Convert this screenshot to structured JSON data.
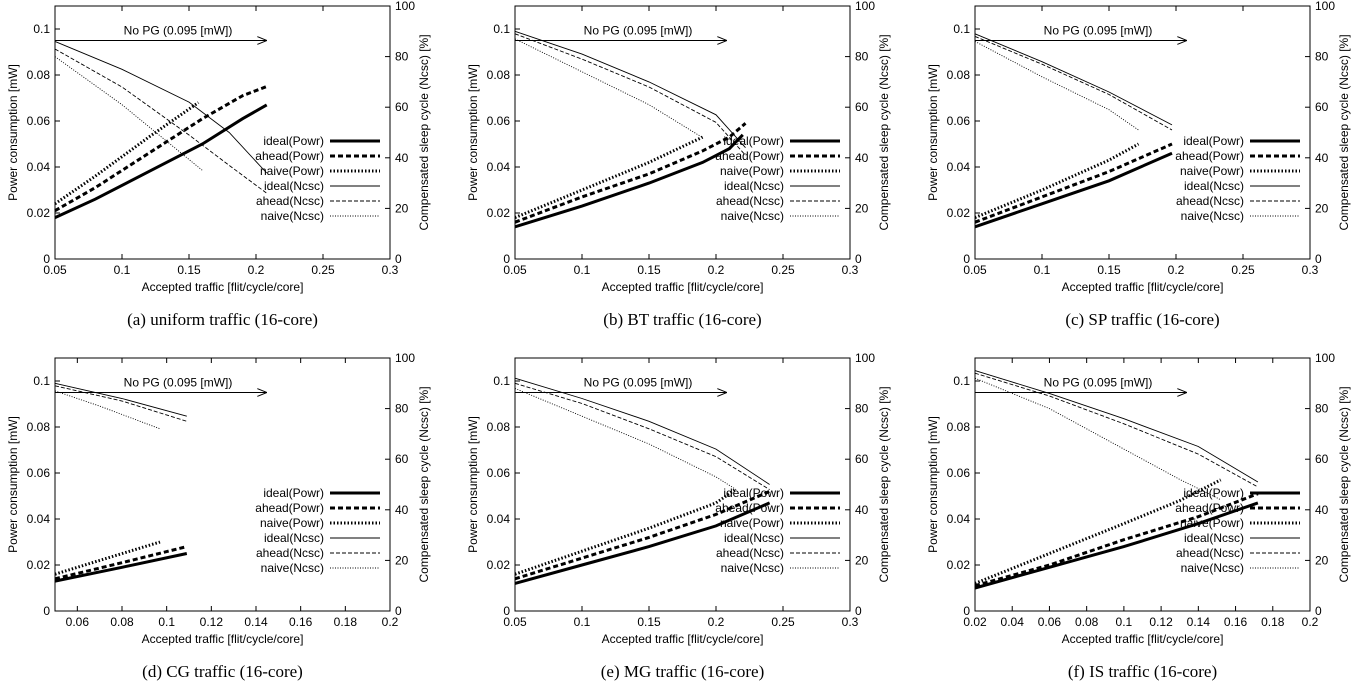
{
  "chart_data": [
    {
      "type": "line",
      "caption": "(a)  uniform traffic (16-core)",
      "xlabel": "Accepted traffic [flit/cycle/core]",
      "ylabel": "Power consumption [mW]",
      "y2label": "Compensated sleep cycle (Ncsc) [%]",
      "xlim": [
        0.05,
        0.3
      ],
      "xticks": [
        0.05,
        0.1,
        0.15,
        0.2,
        0.25,
        0.3
      ],
      "xtick_labels": [
        "0.05",
        "0.1",
        "0.15",
        "0.2",
        "0.25",
        "0.3"
      ],
      "ylim": [
        0,
        0.11
      ],
      "yticks": [
        0,
        0.02,
        0.04,
        0.06,
        0.08,
        0.1
      ],
      "ytick_labels": [
        "0",
        "0.02",
        "0.04",
        "0.06",
        "0.08",
        "0.1"
      ],
      "y2lim": [
        0,
        100
      ],
      "y2ticks": [
        0,
        20,
        40,
        60,
        80,
        100
      ],
      "y2tick_labels": [
        "0",
        "20",
        "40",
        "60",
        "80",
        "100"
      ],
      "annotation": "No PG (0.095 [mW])",
      "nopg_value": 0.095,
      "series": [
        {
          "name": "ideal(Powr)",
          "axis": "y",
          "style": "thick-solid",
          "x": [
            0.05,
            0.08,
            0.12,
            0.16,
            0.19,
            0.208
          ],
          "y": [
            0.018,
            0.026,
            0.038,
            0.05,
            0.061,
            0.067
          ]
        },
        {
          "name": "ahead(Powr)",
          "axis": "y",
          "style": "thick-dash",
          "x": [
            0.05,
            0.08,
            0.12,
            0.16,
            0.19,
            0.208
          ],
          "y": [
            0.021,
            0.031,
            0.046,
            0.061,
            0.071,
            0.075
          ]
        },
        {
          "name": "naive(Powr)",
          "axis": "y",
          "style": "thick-dot",
          "x": [
            0.05,
            0.08,
            0.12,
            0.157
          ],
          "y": [
            0.024,
            0.036,
            0.053,
            0.068
          ]
        },
        {
          "name": "ideal(Ncsc)",
          "axis": "y2",
          "style": "thin-solid",
          "x": [
            0.05,
            0.1,
            0.15,
            0.18,
            0.208
          ],
          "y": [
            86,
            75,
            62,
            50,
            34
          ]
        },
        {
          "name": "ahead(Ncsc)",
          "axis": "y2",
          "style": "thin-dash",
          "x": [
            0.05,
            0.1,
            0.15,
            0.18,
            0.208
          ],
          "y": [
            83,
            68,
            49,
            37,
            26
          ]
        },
        {
          "name": "naive(Ncsc)",
          "axis": "y2",
          "style": "thin-dot",
          "x": [
            0.05,
            0.1,
            0.13,
            0.16
          ],
          "y": [
            80,
            61,
            48,
            35
          ]
        }
      ]
    },
    {
      "type": "line",
      "caption": "(b)  BT traffic (16-core)",
      "xlabel": "Accepted traffic [flit/cycle/core]",
      "ylabel": "Power consumption [mW]",
      "y2label": "Compensated sleep cycle (Ncsc) [%]",
      "xlim": [
        0.05,
        0.3
      ],
      "xticks": [
        0.05,
        0.1,
        0.15,
        0.2,
        0.25,
        0.3
      ],
      "xtick_labels": [
        "0.05",
        "0.1",
        "0.15",
        "0.2",
        "0.25",
        "0.3"
      ],
      "ylim": [
        0,
        0.11
      ],
      "yticks": [
        0,
        0.02,
        0.04,
        0.06,
        0.08,
        0.1
      ],
      "ytick_labels": [
        "0",
        "0.02",
        "0.04",
        "0.06",
        "0.08",
        "0.1"
      ],
      "y2lim": [
        0,
        100
      ],
      "y2ticks": [
        0,
        20,
        40,
        60,
        80,
        100
      ],
      "y2tick_labels": [
        "0",
        "20",
        "40",
        "60",
        "80",
        "100"
      ],
      "annotation": "No PG (0.095 [mW])",
      "nopg_value": 0.095,
      "series": [
        {
          "name": "ideal(Powr)",
          "axis": "y",
          "style": "thick-solid",
          "x": [
            0.05,
            0.1,
            0.15,
            0.19,
            0.21,
            0.22
          ],
          "y": [
            0.014,
            0.023,
            0.033,
            0.042,
            0.048,
            0.054
          ]
        },
        {
          "name": "ahead(Powr)",
          "axis": "y",
          "style": "thick-dash",
          "x": [
            0.05,
            0.1,
            0.15,
            0.19,
            0.21,
            0.222
          ],
          "y": [
            0.016,
            0.027,
            0.037,
            0.047,
            0.053,
            0.059
          ]
        },
        {
          "name": "naive(Powr)",
          "axis": "y",
          "style": "thick-dot",
          "x": [
            0.05,
            0.1,
            0.15,
            0.19
          ],
          "y": [
            0.018,
            0.03,
            0.042,
            0.053
          ]
        },
        {
          "name": "ideal(Ncsc)",
          "axis": "y2",
          "style": "thin-solid",
          "x": [
            0.05,
            0.1,
            0.15,
            0.2,
            0.222
          ],
          "y": [
            90,
            81,
            70,
            57,
            44
          ]
        },
        {
          "name": "ahead(Ncsc)",
          "axis": "y2",
          "style": "thin-dash",
          "x": [
            0.05,
            0.1,
            0.15,
            0.2,
            0.222
          ],
          "y": [
            89,
            79,
            68,
            54,
            41
          ]
        },
        {
          "name": "naive(Ncsc)",
          "axis": "y2",
          "style": "thin-dot",
          "x": [
            0.05,
            0.1,
            0.15,
            0.19
          ],
          "y": [
            87,
            74,
            61,
            48
          ]
        }
      ]
    },
    {
      "type": "line",
      "caption": "(c)  SP traffic (16-core)",
      "xlabel": "Accepted traffic [flit/cycle/core]",
      "ylabel": "Power consumption [mW]",
      "y2label": "Compensated sleep cycle (Ncsc) [%]",
      "xlim": [
        0.05,
        0.3
      ],
      "xticks": [
        0.05,
        0.1,
        0.15,
        0.2,
        0.25,
        0.3
      ],
      "xtick_labels": [
        "0.05",
        "0.1",
        "0.15",
        "0.2",
        "0.25",
        "0.3"
      ],
      "ylim": [
        0,
        0.11
      ],
      "yticks": [
        0,
        0.02,
        0.04,
        0.06,
        0.08,
        0.1
      ],
      "ytick_labels": [
        "0",
        "0.02",
        "0.04",
        "0.06",
        "0.08",
        "0.1"
      ],
      "y2lim": [
        0,
        100
      ],
      "y2ticks": [
        0,
        20,
        40,
        60,
        80,
        100
      ],
      "y2tick_labels": [
        "0",
        "20",
        "40",
        "60",
        "80",
        "100"
      ],
      "annotation": "No PG (0.095 [mW])",
      "nopg_value": 0.095,
      "series": [
        {
          "name": "ideal(Powr)",
          "axis": "y",
          "style": "thick-solid",
          "x": [
            0.05,
            0.1,
            0.15,
            0.197
          ],
          "y": [
            0.014,
            0.024,
            0.034,
            0.046
          ]
        },
        {
          "name": "ahead(Powr)",
          "axis": "y",
          "style": "thick-dash",
          "x": [
            0.05,
            0.1,
            0.15,
            0.197
          ],
          "y": [
            0.016,
            0.027,
            0.038,
            0.05
          ]
        },
        {
          "name": "naive(Powr)",
          "axis": "y",
          "style": "thick-dot",
          "x": [
            0.05,
            0.1,
            0.15,
            0.172
          ],
          "y": [
            0.018,
            0.03,
            0.043,
            0.05
          ]
        },
        {
          "name": "ideal(Ncsc)",
          "axis": "y2",
          "style": "thin-solid",
          "x": [
            0.05,
            0.1,
            0.15,
            0.197
          ],
          "y": [
            89,
            78,
            66,
            53
          ]
        },
        {
          "name": "ahead(Ncsc)",
          "axis": "y2",
          "style": "thin-dash",
          "x": [
            0.05,
            0.1,
            0.15,
            0.197
          ],
          "y": [
            88,
            77,
            65,
            51
          ]
        },
        {
          "name": "naive(Ncsc)",
          "axis": "y2",
          "style": "thin-dot",
          "x": [
            0.05,
            0.1,
            0.15,
            0.172
          ],
          "y": [
            86,
            72,
            59,
            51
          ]
        }
      ]
    },
    {
      "type": "line",
      "caption": "(d)  CG traffic (16-core)",
      "xlabel": "Accepted traffic [flit/cycle/core]",
      "ylabel": "Power consumption [mW]",
      "y2label": "Compensated sleep cycle (Ncsc) [%]",
      "xlim": [
        0.05,
        0.2
      ],
      "xticks": [
        0.06,
        0.08,
        0.1,
        0.12,
        0.14,
        0.16,
        0.18,
        0.2
      ],
      "xtick_labels": [
        "0.06",
        "0.08",
        "0.1",
        "0.12",
        "0.14",
        "0.16",
        "0.18",
        "0.2"
      ],
      "ylim": [
        0,
        0.11
      ],
      "yticks": [
        0,
        0.02,
        0.04,
        0.06,
        0.08,
        0.1
      ],
      "ytick_labels": [
        "0",
        "0.02",
        "0.04",
        "0.06",
        "0.08",
        "0.1"
      ],
      "y2lim": [
        0,
        100
      ],
      "y2ticks": [
        0,
        20,
        40,
        60,
        80,
        100
      ],
      "y2tick_labels": [
        "0",
        "20",
        "40",
        "60",
        "80",
        "100"
      ],
      "annotation": "No PG (0.095 [mW])",
      "nopg_value": 0.095,
      "series": [
        {
          "name": "ideal(Powr)",
          "axis": "y",
          "style": "thick-solid",
          "x": [
            0.05,
            0.08,
            0.109
          ],
          "y": [
            0.013,
            0.019,
            0.025
          ]
        },
        {
          "name": "ahead(Powr)",
          "axis": "y",
          "style": "thick-dash",
          "x": [
            0.05,
            0.08,
            0.109
          ],
          "y": [
            0.014,
            0.021,
            0.028
          ]
        },
        {
          "name": "naive(Powr)",
          "axis": "y",
          "style": "thick-dot",
          "x": [
            0.05,
            0.07,
            0.097
          ],
          "y": [
            0.016,
            0.022,
            0.03
          ]
        },
        {
          "name": "ideal(Ncsc)",
          "axis": "y2",
          "style": "thin-solid",
          "x": [
            0.05,
            0.08,
            0.109
          ],
          "y": [
            90,
            84,
            77
          ]
        },
        {
          "name": "ahead(Ncsc)",
          "axis": "y2",
          "style": "thin-dash",
          "x": [
            0.05,
            0.08,
            0.109
          ],
          "y": [
            89,
            83,
            75
          ]
        },
        {
          "name": "naive(Ncsc)",
          "axis": "y2",
          "style": "thin-dot",
          "x": [
            0.05,
            0.07,
            0.097
          ],
          "y": [
            87,
            81,
            72
          ]
        }
      ]
    },
    {
      "type": "line",
      "caption": "(e)  MG traffic (16-core)",
      "xlabel": "Accepted traffic [flit/cycle/core]",
      "ylabel": "Power consumption [mW]",
      "y2label": "Compensated sleep cycle (Ncsc) [%]",
      "xlim": [
        0.05,
        0.3
      ],
      "xticks": [
        0.05,
        0.1,
        0.15,
        0.2,
        0.25,
        0.3
      ],
      "xtick_labels": [
        "0.05",
        "0.1",
        "0.15",
        "0.2",
        "0.25",
        "0.3"
      ],
      "ylim": [
        0,
        0.11
      ],
      "yticks": [
        0,
        0.02,
        0.04,
        0.06,
        0.08,
        0.1
      ],
      "ytick_labels": [
        "0",
        "0.02",
        "0.04",
        "0.06",
        "0.08",
        "0.1"
      ],
      "y2lim": [
        0,
        100
      ],
      "y2ticks": [
        0,
        20,
        40,
        60,
        80,
        100
      ],
      "y2tick_labels": [
        "0",
        "20",
        "40",
        "60",
        "80",
        "100"
      ],
      "annotation": "No PG (0.095 [mW])",
      "nopg_value": 0.095,
      "series": [
        {
          "name": "ideal(Powr)",
          "axis": "y",
          "style": "thick-solid",
          "x": [
            0.05,
            0.1,
            0.15,
            0.2,
            0.24
          ],
          "y": [
            0.012,
            0.02,
            0.028,
            0.037,
            0.047
          ]
        },
        {
          "name": "ahead(Powr)",
          "axis": "y",
          "style": "thick-dash",
          "x": [
            0.05,
            0.1,
            0.15,
            0.2,
            0.24
          ],
          "y": [
            0.014,
            0.023,
            0.032,
            0.042,
            0.052
          ]
        },
        {
          "name": "naive(Powr)",
          "axis": "y",
          "style": "thick-dot",
          "x": [
            0.05,
            0.1,
            0.15,
            0.2,
            0.215
          ],
          "y": [
            0.016,
            0.026,
            0.036,
            0.047,
            0.053
          ]
        },
        {
          "name": "ideal(Ncsc)",
          "axis": "y2",
          "style": "thin-solid",
          "x": [
            0.05,
            0.1,
            0.15,
            0.2,
            0.24
          ],
          "y": [
            92,
            84,
            75,
            64,
            50
          ]
        },
        {
          "name": "ahead(Ncsc)",
          "axis": "y2",
          "style": "thin-dash",
          "x": [
            0.05,
            0.1,
            0.15,
            0.2,
            0.24
          ],
          "y": [
            90,
            82,
            72,
            61,
            48
          ]
        },
        {
          "name": "naive(Ncsc)",
          "axis": "y2",
          "style": "thin-dot",
          "x": [
            0.05,
            0.1,
            0.15,
            0.2,
            0.215
          ],
          "y": [
            88,
            77,
            66,
            53,
            48
          ]
        }
      ]
    },
    {
      "type": "line",
      "caption": "(f)  IS traffic (16-core)",
      "xlabel": "Accepted traffic [flit/cycle/core]",
      "ylabel": "Power consumption [mW]",
      "y2label": "Compensated sleep cycle (Ncsc) [%]",
      "xlim": [
        0.02,
        0.2
      ],
      "xticks": [
        0.02,
        0.04,
        0.06,
        0.08,
        0.1,
        0.12,
        0.14,
        0.16,
        0.18,
        0.2
      ],
      "xtick_labels": [
        "0.02",
        "0.04",
        "0.06",
        "0.08",
        "0.1",
        "0.12",
        "0.14",
        "0.16",
        "0.18",
        "0.2"
      ],
      "ylim": [
        0,
        0.11
      ],
      "yticks": [
        0,
        0.02,
        0.04,
        0.06,
        0.08,
        0.1
      ],
      "ytick_labels": [
        "0",
        "0.02",
        "0.04",
        "0.06",
        "0.08",
        "0.1"
      ],
      "y2lim": [
        0,
        100
      ],
      "y2ticks": [
        0,
        20,
        40,
        60,
        80,
        100
      ],
      "y2tick_labels": [
        "0",
        "20",
        "40",
        "60",
        "80",
        "100"
      ],
      "annotation": "No PG (0.095 [mW])",
      "nopg_value": 0.095,
      "series": [
        {
          "name": "ideal(Powr)",
          "axis": "y",
          "style": "thick-solid",
          "x": [
            0.02,
            0.06,
            0.1,
            0.14,
            0.172
          ],
          "y": [
            0.01,
            0.019,
            0.028,
            0.038,
            0.047
          ]
        },
        {
          "name": "ahead(Powr)",
          "axis": "y",
          "style": "thick-dash",
          "x": [
            0.02,
            0.06,
            0.1,
            0.14,
            0.172
          ],
          "y": [
            0.011,
            0.02,
            0.031,
            0.041,
            0.051
          ]
        },
        {
          "name": "naive(Powr)",
          "axis": "y",
          "style": "thick-dot",
          "x": [
            0.02,
            0.06,
            0.1,
            0.13,
            0.152
          ],
          "y": [
            0.012,
            0.025,
            0.038,
            0.048,
            0.057
          ]
        },
        {
          "name": "ideal(Ncsc)",
          "axis": "y2",
          "style": "thin-solid",
          "x": [
            0.02,
            0.06,
            0.1,
            0.14,
            0.172
          ],
          "y": [
            95,
            86,
            76,
            65,
            51
          ]
        },
        {
          "name": "ahead(Ncsc)",
          "axis": "y2",
          "style": "thin-dash",
          "x": [
            0.02,
            0.06,
            0.1,
            0.14,
            0.172
          ],
          "y": [
            94,
            85,
            74,
            62,
            49
          ]
        },
        {
          "name": "naive(Ncsc)",
          "axis": "y2",
          "style": "thin-dot",
          "x": [
            0.02,
            0.06,
            0.1,
            0.13,
            0.152
          ],
          "y": [
            92,
            80,
            64,
            52,
            44
          ]
        }
      ]
    }
  ]
}
